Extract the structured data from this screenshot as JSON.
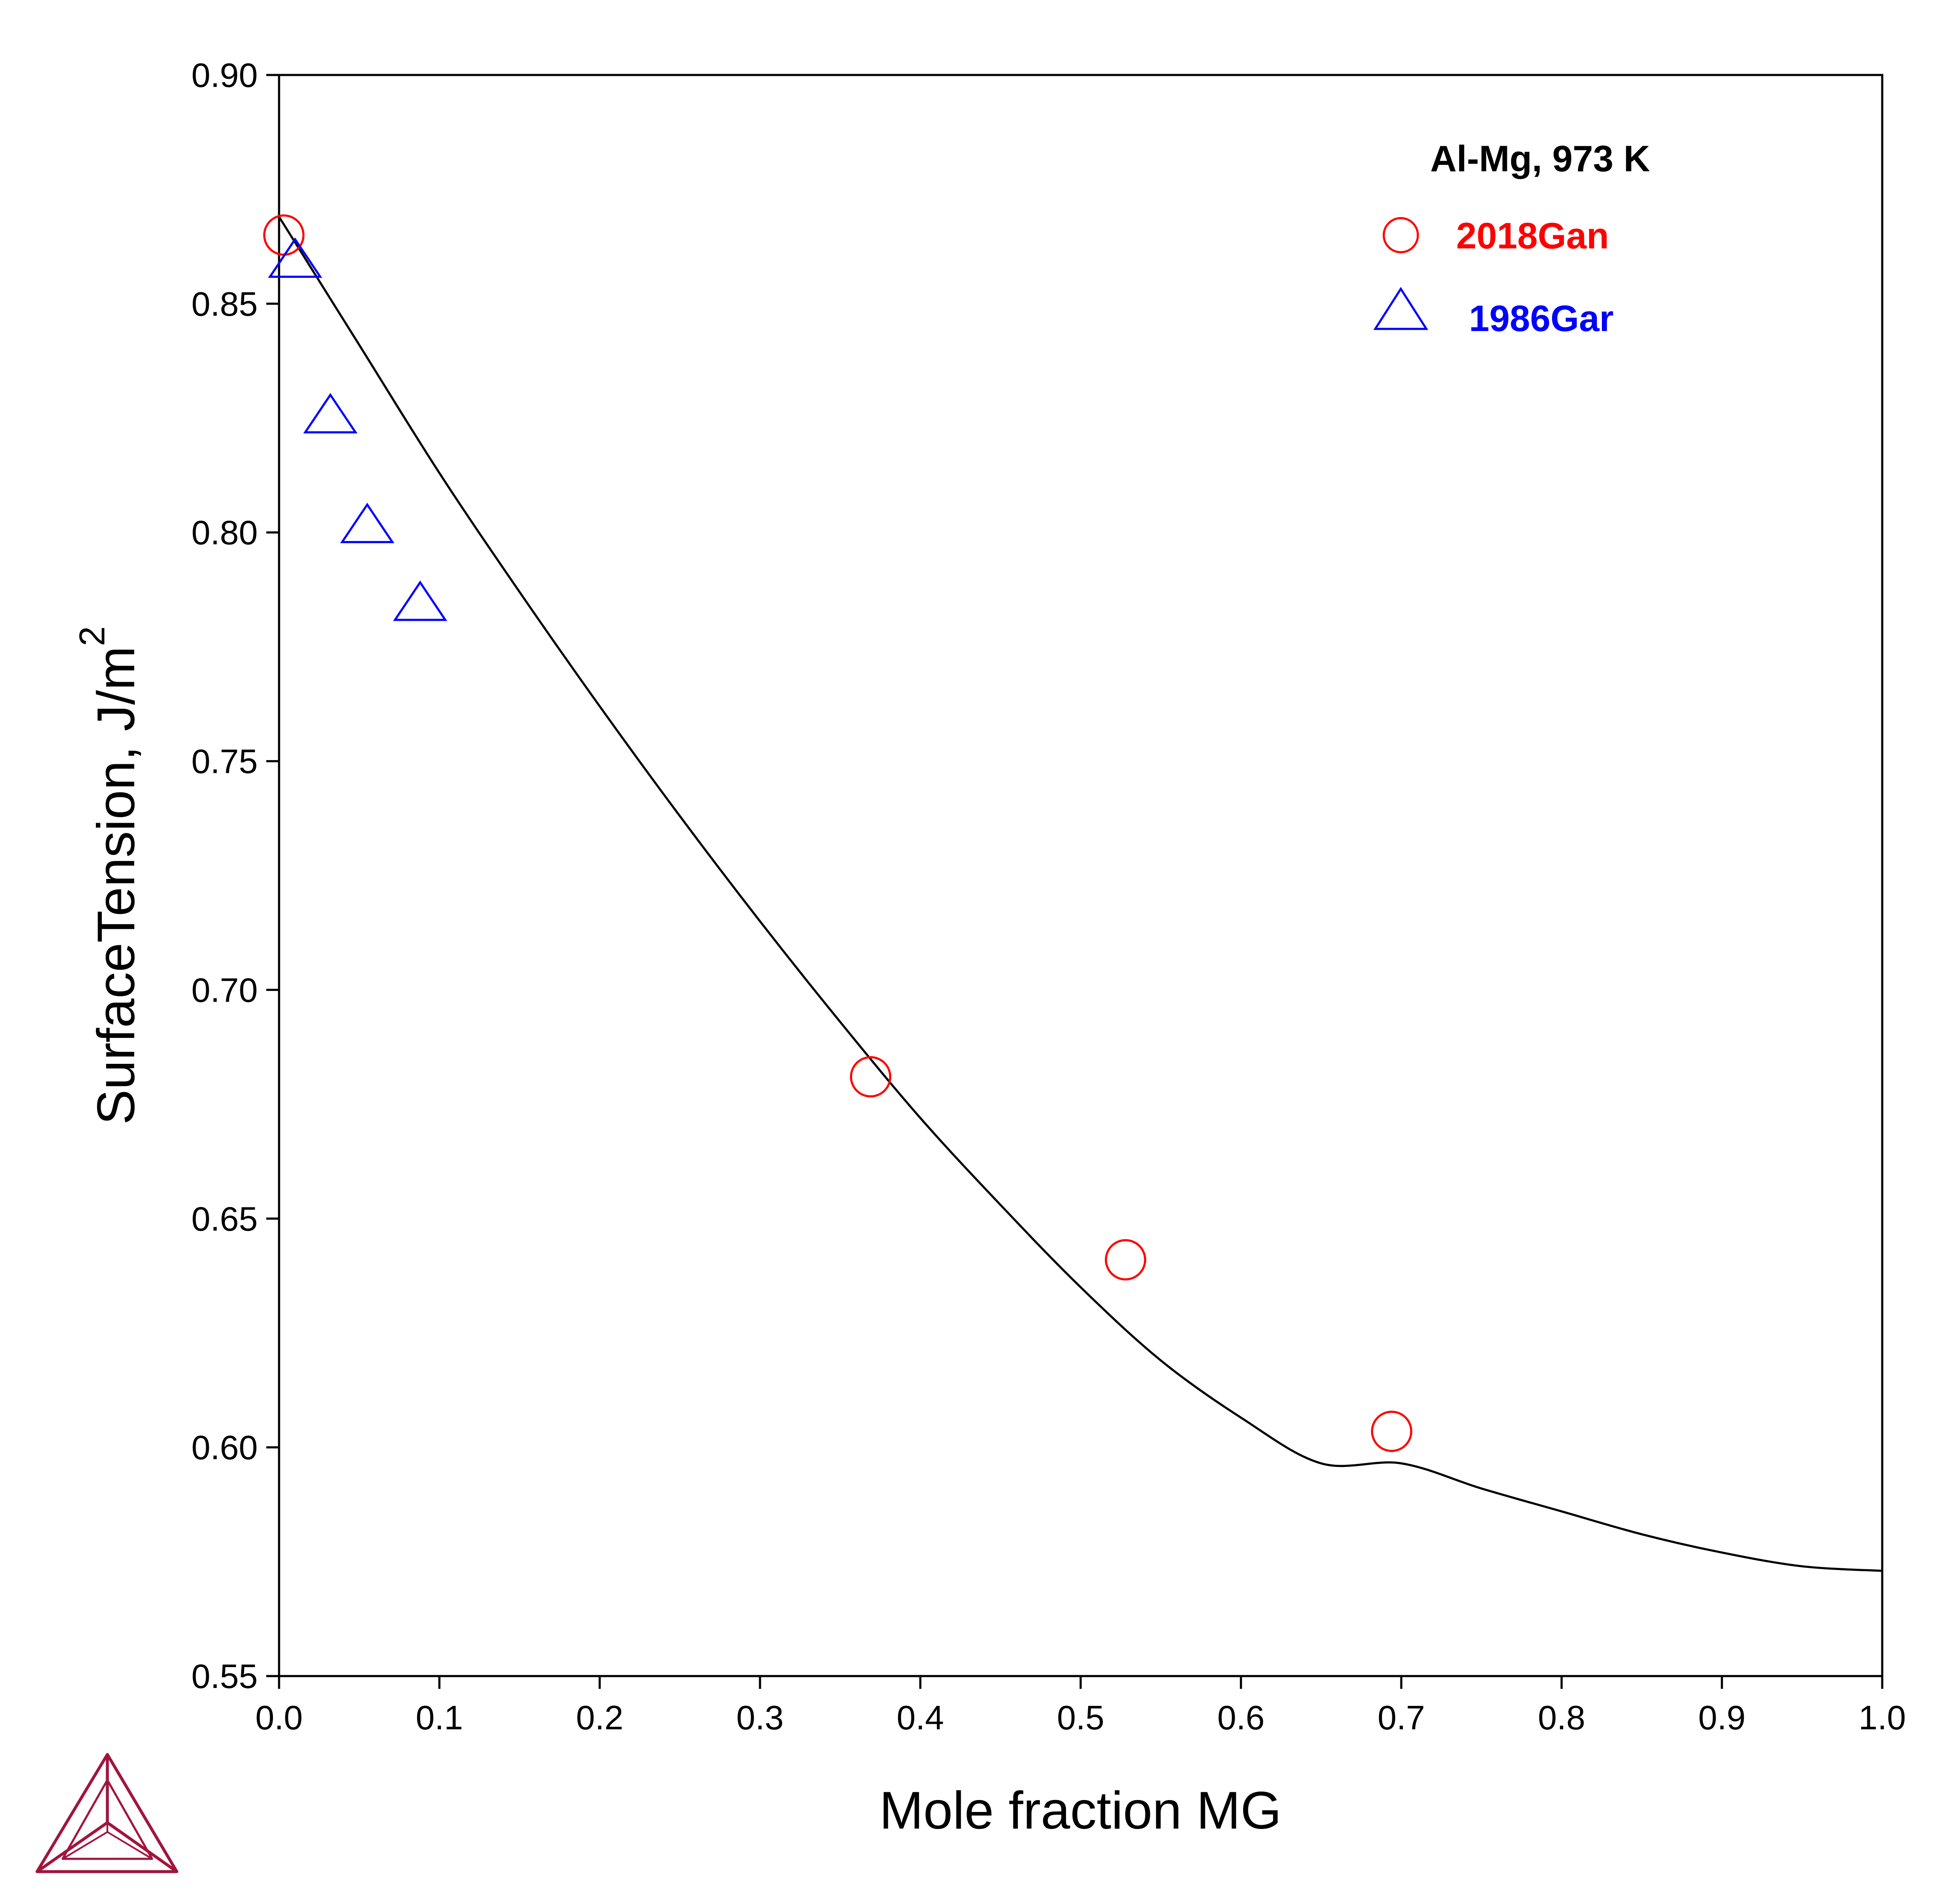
{
  "chart_data": {
    "type": "line",
    "xlabel": "Mole fraction MG",
    "ylabel": "SurfaceTension, J/m",
    "ylabel_superscript": "2",
    "xlim": [
      0.0,
      1.0
    ],
    "ylim": [
      0.55,
      0.9
    ],
    "xticks": [
      "0.0",
      "0.1",
      "0.2",
      "0.3",
      "0.4",
      "0.5",
      "0.6",
      "0.7",
      "0.8",
      "0.9",
      "1.0"
    ],
    "yticks": [
      "0.55",
      "0.60",
      "0.65",
      "0.70",
      "0.75",
      "0.80",
      "0.85",
      "0.90"
    ],
    "grid": false,
    "legend_position": "top-right",
    "annotation": "Al-Mg, 973 K",
    "curve": {
      "color": "#000000",
      "x": [
        0.0,
        0.05,
        0.1,
        0.15,
        0.2,
        0.25,
        0.3,
        0.35,
        0.4,
        0.45,
        0.5,
        0.55,
        0.6,
        0.65,
        0.7,
        0.75,
        0.8,
        0.85,
        0.9,
        0.95,
        1.0
      ],
      "y": [
        0.869,
        0.841,
        0.813,
        0.787,
        0.762,
        0.738,
        0.715,
        0.693,
        0.672,
        0.653,
        0.635,
        0.619,
        0.6065,
        0.5965,
        0.5965,
        0.591,
        0.586,
        0.581,
        0.577,
        0.574,
        0.573
      ]
    },
    "series": [
      {
        "name": "2018Gan",
        "marker": "circle",
        "color": "#ff0000",
        "x": [
          0.003,
          0.369,
          0.528,
          0.694
        ],
        "y": [
          0.865,
          0.681,
          0.641,
          0.6035
        ]
      },
      {
        "name": "1986Gar",
        "marker": "triangle",
        "color": "#0000ff",
        "x": [
          0.01,
          0.032,
          0.055,
          0.088
        ],
        "y": [
          0.859,
          0.825,
          0.801,
          0.784
        ]
      }
    ]
  },
  "logo_colors": {
    "primary": "#a0153e"
  }
}
